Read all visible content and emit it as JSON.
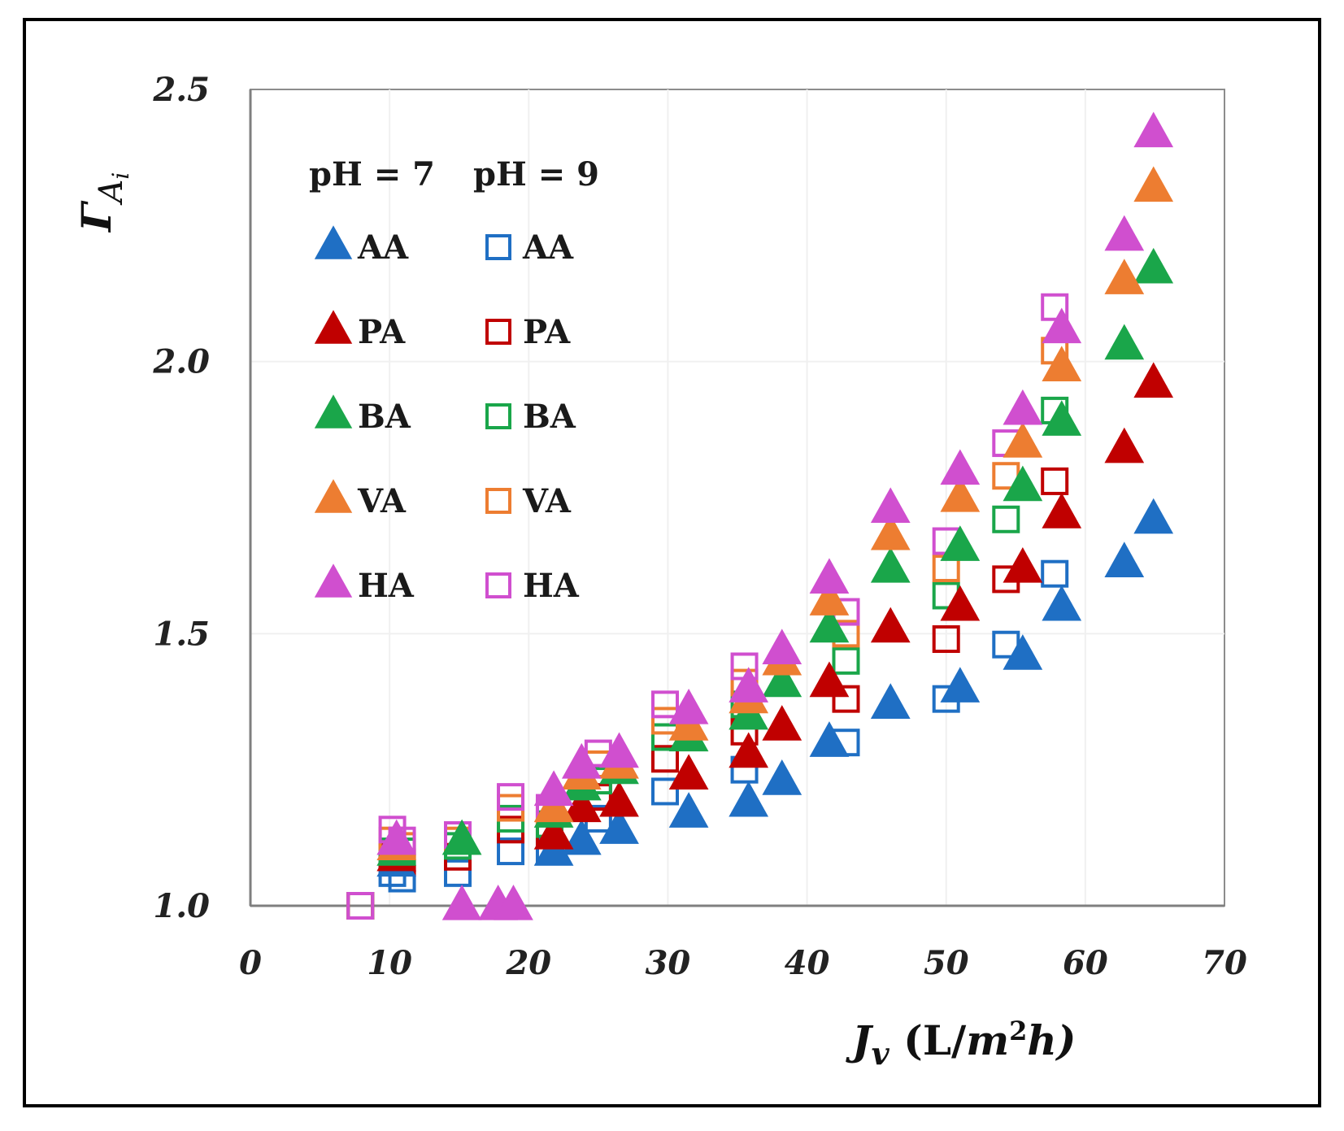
{
  "chart_data": {
    "type": "scatter",
    "title": "",
    "xlabel": {
      "main": "J",
      "sub": "v",
      "pre": " (L/",
      "unit": "m",
      "sup": "2",
      "post": "h)"
    },
    "ylabel": {
      "main": "Γ",
      "sub": "A",
      "subsub": "i"
    },
    "xlim": [
      0,
      70
    ],
    "ylim": [
      1.0,
      2.5
    ],
    "x_ticks": [
      0,
      10,
      20,
      30,
      40,
      50,
      60,
      70
    ],
    "x_tick_labels": [
      "0",
      "10",
      "20",
      "30",
      "40",
      "50",
      "60",
      "70"
    ],
    "y_ticks": [
      1.0,
      1.5,
      2.0,
      2.5
    ],
    "y_tick_labels": [
      "1.0",
      "1.5",
      "2.0",
      "2.5"
    ],
    "grid": true,
    "legend": {
      "placement": "top-left",
      "headers": [
        "pH = 7",
        "pH = 9"
      ],
      "entries": [
        "AA",
        "PA",
        "BA",
        "VA",
        "HA"
      ]
    },
    "colors": {
      "AA": "#1f6fc4",
      "PA": "#c00000",
      "BA": "#1aa64a",
      "VA": "#ed7d31",
      "HA": "#d04fcf"
    },
    "series": [
      {
        "name": "AA",
        "ph": "pH = 7",
        "marker": "triangle",
        "x": [
          10.5,
          21.8,
          23.8,
          26.5,
          31.5,
          35.8,
          38.2,
          41.6,
          46.0,
          51.0,
          55.5,
          58.3,
          62.8,
          64.9
        ],
        "y": [
          1.08,
          1.1,
          1.12,
          1.14,
          1.17,
          1.19,
          1.23,
          1.3,
          1.37,
          1.4,
          1.46,
          1.55,
          1.63,
          1.71
        ]
      },
      {
        "name": "PA",
        "ph": "pH = 7",
        "marker": "triangle",
        "x": [
          10.5,
          21.8,
          23.8,
          26.5,
          31.5,
          35.8,
          38.2,
          41.6,
          46.0,
          51.0,
          55.5,
          58.3,
          62.8,
          64.9
        ],
        "y": [
          1.09,
          1.13,
          1.18,
          1.19,
          1.24,
          1.28,
          1.33,
          1.41,
          1.51,
          1.55,
          1.62,
          1.72,
          1.84,
          1.96
        ]
      },
      {
        "name": "BA",
        "ph": "pH = 7",
        "marker": "triangle",
        "x": [
          10.5,
          15.2,
          21.8,
          23.8,
          26.5,
          31.5,
          35.8,
          38.2,
          41.6,
          46.0,
          51.0,
          55.5,
          58.3,
          62.8,
          64.9
        ],
        "y": [
          1.1,
          1.12,
          1.17,
          1.22,
          1.25,
          1.31,
          1.35,
          1.41,
          1.51,
          1.62,
          1.66,
          1.77,
          1.89,
          2.03,
          2.17
        ]
      },
      {
        "name": "VA",
        "ph": "pH = 7",
        "marker": "triangle",
        "x": [
          10.5,
          21.8,
          23.8,
          26.5,
          31.5,
          35.8,
          38.2,
          41.6,
          46.0,
          51.0,
          55.5,
          58.3,
          62.8,
          64.9
        ],
        "y": [
          1.11,
          1.18,
          1.24,
          1.26,
          1.33,
          1.38,
          1.45,
          1.56,
          1.68,
          1.75,
          1.85,
          1.99,
          2.15,
          2.32
        ]
      },
      {
        "name": "HA",
        "ph": "pH = 7",
        "marker": "triangle",
        "x": [
          10.5,
          15.2,
          17.8,
          18.9,
          21.8,
          23.8,
          26.5,
          31.5,
          35.8,
          38.2,
          41.6,
          46.0,
          51.0,
          55.5,
          58.3,
          62.8,
          64.9
        ],
        "y": [
          1.12,
          1.0,
          1.0,
          1.0,
          1.21,
          1.26,
          1.28,
          1.36,
          1.4,
          1.47,
          1.6,
          1.73,
          1.8,
          1.91,
          2.06,
          2.23,
          2.42
        ]
      },
      {
        "name": "AA",
        "ph": "pH = 9",
        "marker": "square",
        "x": [
          7.9,
          10.2,
          10.9,
          14.9,
          18.7,
          21.5,
          25.0,
          29.8,
          35.5,
          42.8,
          50.0,
          54.3,
          57.8
        ],
        "y": [
          1.0,
          1.06,
          1.05,
          1.06,
          1.1,
          1.1,
          1.16,
          1.21,
          1.25,
          1.3,
          1.38,
          1.48,
          1.61
        ]
      },
      {
        "name": "PA",
        "ph": "pH = 9",
        "marker": "square",
        "x": [
          7.9,
          10.2,
          10.9,
          14.9,
          18.7,
          21.5,
          25.0,
          29.8,
          35.5,
          42.8,
          50.0,
          54.3,
          57.8
        ],
        "y": [
          1.0,
          1.09,
          1.08,
          1.09,
          1.14,
          1.13,
          1.2,
          1.27,
          1.32,
          1.38,
          1.49,
          1.6,
          1.78
        ]
      },
      {
        "name": "BA",
        "ph": "pH = 9",
        "marker": "square",
        "x": [
          7.9,
          10.2,
          10.9,
          14.9,
          18.7,
          21.5,
          25.0,
          29.8,
          35.5,
          42.8,
          50.0,
          54.3,
          57.8
        ],
        "y": [
          1.0,
          1.1,
          1.1,
          1.11,
          1.16,
          1.15,
          1.23,
          1.31,
          1.37,
          1.45,
          1.57,
          1.71,
          1.91
        ]
      },
      {
        "name": "VA",
        "ph": "pH = 9",
        "marker": "square",
        "x": [
          7.9,
          10.2,
          10.9,
          14.9,
          18.7,
          21.5,
          25.0,
          29.8,
          35.5,
          42.8,
          50.0,
          54.3,
          57.8
        ],
        "y": [
          1.0,
          1.12,
          1.11,
          1.12,
          1.18,
          1.17,
          1.26,
          1.34,
          1.41,
          1.5,
          1.62,
          1.79,
          2.02
        ]
      },
      {
        "name": "HA",
        "ph": "pH = 9",
        "marker": "square",
        "x": [
          7.9,
          10.2,
          10.9,
          14.9,
          18.7,
          21.5,
          25.0,
          29.8,
          35.5,
          42.8,
          50.0,
          54.3,
          57.8
        ],
        "y": [
          1.0,
          1.14,
          1.12,
          1.13,
          1.2,
          1.18,
          1.28,
          1.37,
          1.44,
          1.54,
          1.67,
          1.85,
          2.1
        ]
      }
    ]
  }
}
